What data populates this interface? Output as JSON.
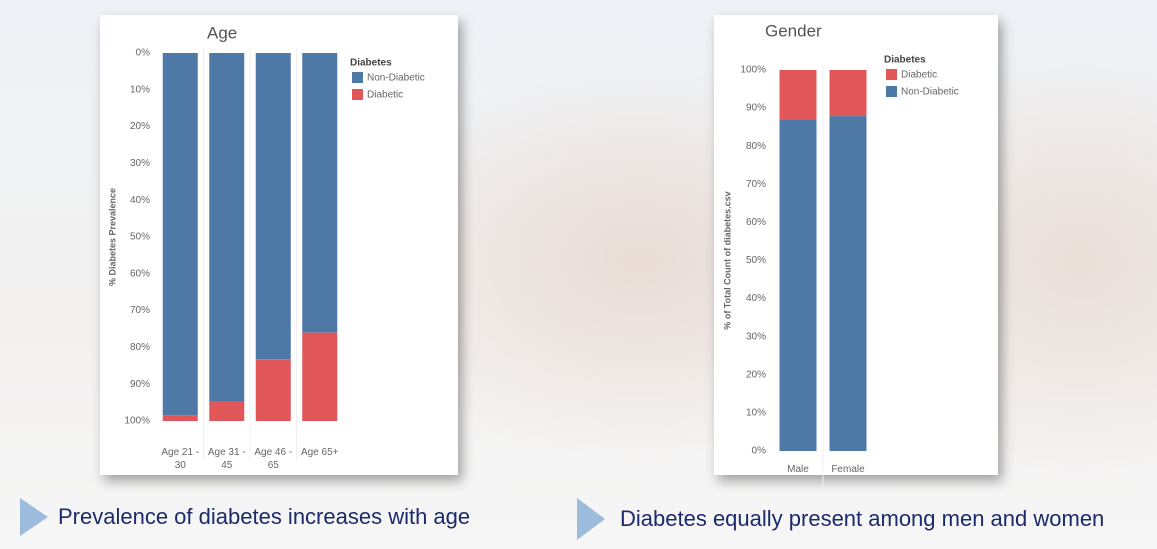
{
  "chart_data": [
    {
      "type": "stacked_bar",
      "title": "Age",
      "y_label": "% Diabetes Prevalence",
      "categories": [
        "Age 21 - 30",
        "Age 31 - 45",
        "Age 46 - 65",
        "Age 65+"
      ],
      "series": [
        {
          "name": "Non-Diabetic",
          "color": "#4e79a7",
          "values": [
            98.4,
            94.8,
            83.2,
            76
          ]
        },
        {
          "name": "Diabetic",
          "color": "#e15759",
          "values": [
            1.6,
            5.2,
            16.8,
            24
          ]
        }
      ],
      "legend_title": "Diabetes",
      "legend_reversed": false,
      "y_inverted": true,
      "ylim": [
        0,
        100
      ],
      "yticks": [
        {
          "value": 0,
          "label": "0%"
        },
        {
          "value": 10,
          "label": "10%"
        },
        {
          "value": 20,
          "label": "20%"
        },
        {
          "value": 30,
          "label": "30%"
        },
        {
          "value": 40,
          "label": "40%"
        },
        {
          "value": 50,
          "label": "50%"
        },
        {
          "value": 60,
          "label": "60%"
        },
        {
          "value": 70,
          "label": "70%"
        },
        {
          "value": 80,
          "label": "80%"
        },
        {
          "value": 90,
          "label": "90%"
        },
        {
          "value": 100,
          "label": "100%"
        }
      ]
    },
    {
      "type": "stacked_bar",
      "title": "Gender",
      "y_label": "% of Total Count of diabetes.csv",
      "categories": [
        "Male",
        "Female"
      ],
      "series": [
        {
          "name": "Non-Diabetic",
          "color": "#4e79a7",
          "values": [
            87.1,
            87.9
          ]
        },
        {
          "name": "Diabetic",
          "color": "#e15759",
          "values": [
            12.9,
            12.1
          ]
        }
      ],
      "legend_title": "Diabetes",
      "legend_reversed": true,
      "y_inverted": false,
      "ylim": [
        0,
        100
      ],
      "yticks": [
        {
          "value": 0,
          "label": "0%"
        },
        {
          "value": 10,
          "label": "10%"
        },
        {
          "value": 20,
          "label": "20%"
        },
        {
          "value": 30,
          "label": "30%"
        },
        {
          "value": 40,
          "label": "40%"
        },
        {
          "value": 50,
          "label": "50%"
        },
        {
          "value": 60,
          "label": "60%"
        },
        {
          "value": 70,
          "label": "70%"
        },
        {
          "value": 80,
          "label": "80%"
        },
        {
          "value": 90,
          "label": "90%"
        },
        {
          "value": 100,
          "label": "100%"
        }
      ]
    }
  ],
  "captions": [
    "Prevalence of diabetes increases with age",
    "Diabetes equally present among men and women"
  ]
}
